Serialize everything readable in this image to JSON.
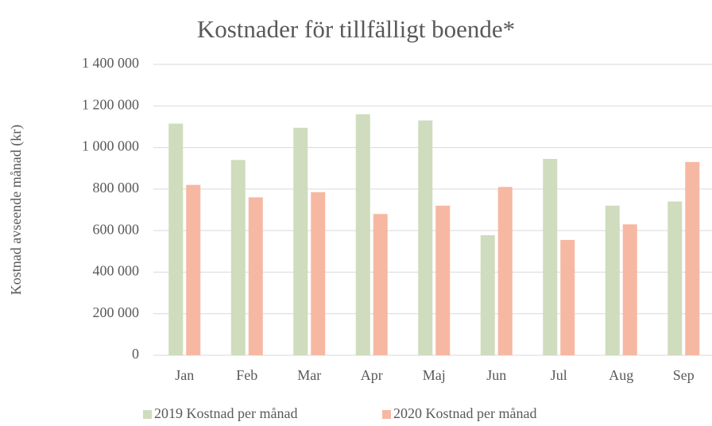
{
  "chart_data": {
    "type": "bar",
    "title": "Kostnader för tillfälligt boende*",
    "y_label": "Kostnad avseende månad (kr)",
    "categories": [
      "Jan",
      "Feb",
      "Mar",
      "Apr",
      "Maj",
      "Jun",
      "Jul",
      "Aug",
      "Sep"
    ],
    "series": [
      {
        "name": "2019 Kostnad per månad",
        "color": "#cfdcbd",
        "values": [
          1115000,
          940000,
          1095000,
          1160000,
          1130000,
          578000,
          945000,
          720000,
          740000
        ]
      },
      {
        "name": "2020 Kostnad per månad",
        "color": "#f6b8a2",
        "values": [
          820000,
          760000,
          785000,
          680000,
          720000,
          810000,
          555000,
          630000,
          930000
        ]
      }
    ],
    "ylim": [
      0,
      1400000
    ],
    "yticks": [
      0,
      {
        "value": 200000,
        "label": "200 000"
      },
      {
        "value": 400000,
        "label": "400 000"
      },
      {
        "value": 600000,
        "label": "600 000"
      },
      {
        "value": 800000,
        "label": "800 000"
      },
      {
        "value": 1000000,
        "label": "1 000 000"
      },
      {
        "value": 1200000,
        "label": "1 200 000"
      },
      {
        "value": 1400000,
        "label": "1 400 000"
      }
    ],
    "grid": true,
    "legend": "bottom"
  }
}
